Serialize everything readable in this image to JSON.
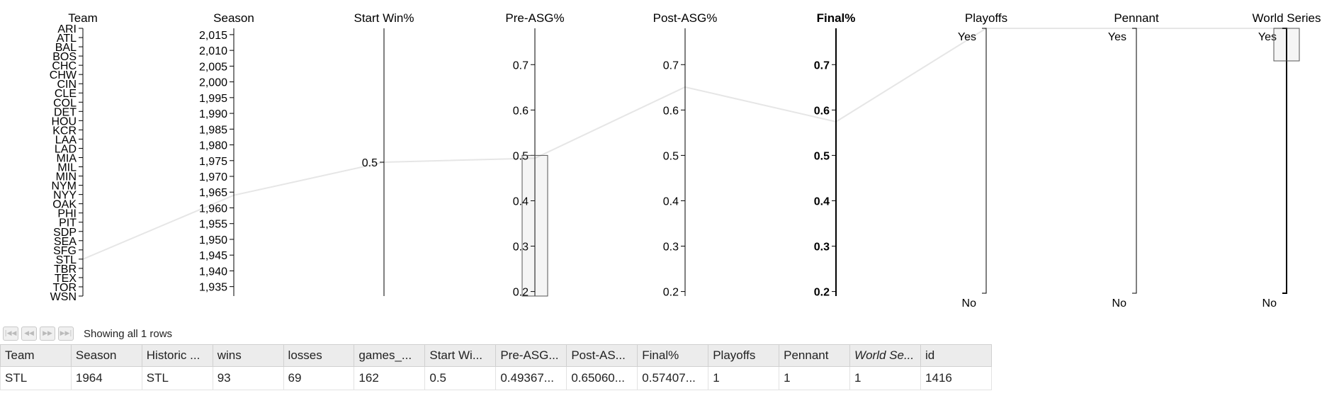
{
  "chart_data": {
    "type": "parallel-coordinates",
    "axes": [
      {
        "key": "team",
        "title": "Team",
        "kind": "categorical",
        "categories": [
          "ARI",
          "ATL",
          "BAL",
          "BOS",
          "CHC",
          "CHW",
          "CIN",
          "CLE",
          "COL",
          "DET",
          "HOU",
          "KCR",
          "LAA",
          "LAD",
          "MIA",
          "MIL",
          "MIN",
          "NYM",
          "NYY",
          "OAK",
          "PHI",
          "PIT",
          "SDP",
          "SEA",
          "SFG",
          "STL",
          "TBR",
          "TEX",
          "TOR",
          "WSN"
        ]
      },
      {
        "key": "season",
        "title": "Season",
        "kind": "numeric",
        "domain": [
          1932,
          2017
        ],
        "ticks": [
          2015,
          2010,
          2005,
          2000,
          1995,
          1990,
          1985,
          1980,
          1975,
          1970,
          1965,
          1960,
          1955,
          1950,
          1945,
          1940,
          1935
        ],
        "tick_labels": [
          "2,015",
          "2,010",
          "2,005",
          "2,000",
          "1,995",
          "1,990",
          "1,985",
          "1,980",
          "1,975",
          "1,970",
          "1,965",
          "1,960",
          "1,955",
          "1,950",
          "1,945",
          "1,940",
          "1,935"
        ]
      },
      {
        "key": "start",
        "title": "Start Win%",
        "kind": "numeric",
        "domain": [
          0.0,
          1.0
        ],
        "ticks": [
          0.5
        ],
        "tick_labels": [
          "0.5"
        ]
      },
      {
        "key": "pre",
        "title": "Pre-ASG%",
        "kind": "numeric",
        "domain": [
          0.19,
          0.78
        ],
        "ticks": [
          0.7,
          0.6,
          0.5,
          0.4,
          0.3,
          0.2
        ],
        "tick_labels": [
          "0.7",
          "0.6",
          "0.5",
          "0.4",
          "0.3",
          "0.2"
        ]
      },
      {
        "key": "post",
        "title": "Post-ASG%",
        "kind": "numeric",
        "domain": [
          0.19,
          0.78
        ],
        "ticks": [
          0.7,
          0.6,
          0.5,
          0.4,
          0.3,
          0.2
        ],
        "tick_labels": [
          "0.7",
          "0.6",
          "0.5",
          "0.4",
          "0.3",
          "0.2"
        ]
      },
      {
        "key": "final",
        "title": "Final%",
        "kind": "numeric",
        "bold": true,
        "domain": [
          0.19,
          0.78
        ],
        "ticks": [
          0.7,
          0.6,
          0.5,
          0.4,
          0.3,
          0.2
        ],
        "tick_labels": [
          "0.7",
          "0.6",
          "0.5",
          "0.4",
          "0.3",
          "0.2"
        ]
      },
      {
        "key": "playoffs",
        "title": "Playoffs",
        "kind": "categorical",
        "categories": [
          "Yes",
          "No"
        ]
      },
      {
        "key": "pennant",
        "title": "Pennant",
        "kind": "categorical",
        "categories": [
          "Yes",
          "No"
        ]
      },
      {
        "key": "ws",
        "title": "World Series",
        "kind": "categorical",
        "categories": [
          "Yes",
          "No"
        ]
      }
    ],
    "records": [
      {
        "team": "STL",
        "season": 1964,
        "start": 0.5,
        "pre": 0.49367,
        "post": 0.6506,
        "final": 0.57407,
        "playoffs": "Yes",
        "pennant": "Yes",
        "ws": "Yes"
      }
    ],
    "brushes": [
      {
        "axis": "pre",
        "range": [
          0.19,
          0.5
        ]
      },
      {
        "axis": "ws",
        "range": [
          "Yes",
          "Yes"
        ]
      }
    ],
    "line_color": "#e6e6e6"
  },
  "pager": {
    "buttons": [
      {
        "name": "first",
        "glyph": "|◀◀"
      },
      {
        "name": "prev",
        "glyph": "◀◀"
      },
      {
        "name": "next",
        "glyph": "▶▶"
      },
      {
        "name": "last",
        "glyph": "▶▶|"
      }
    ],
    "status": "Showing all 1 rows"
  },
  "table": {
    "columns": [
      "Team",
      "Season",
      "Historic ...",
      "wins",
      "losses",
      "games_...",
      "Start Wi...",
      "Pre-ASG...",
      "Post-AS...",
      "Final%",
      "Playoffs",
      "Pennant",
      "World Se...",
      "id"
    ],
    "italic_columns": [
      12
    ],
    "rows": [
      [
        "STL",
        "1964",
        "STL",
        "93",
        "69",
        "162",
        "0.5",
        "0.49367...",
        "0.65060...",
        "0.57407...",
        "1",
        "1",
        "1",
        "1416"
      ]
    ]
  }
}
